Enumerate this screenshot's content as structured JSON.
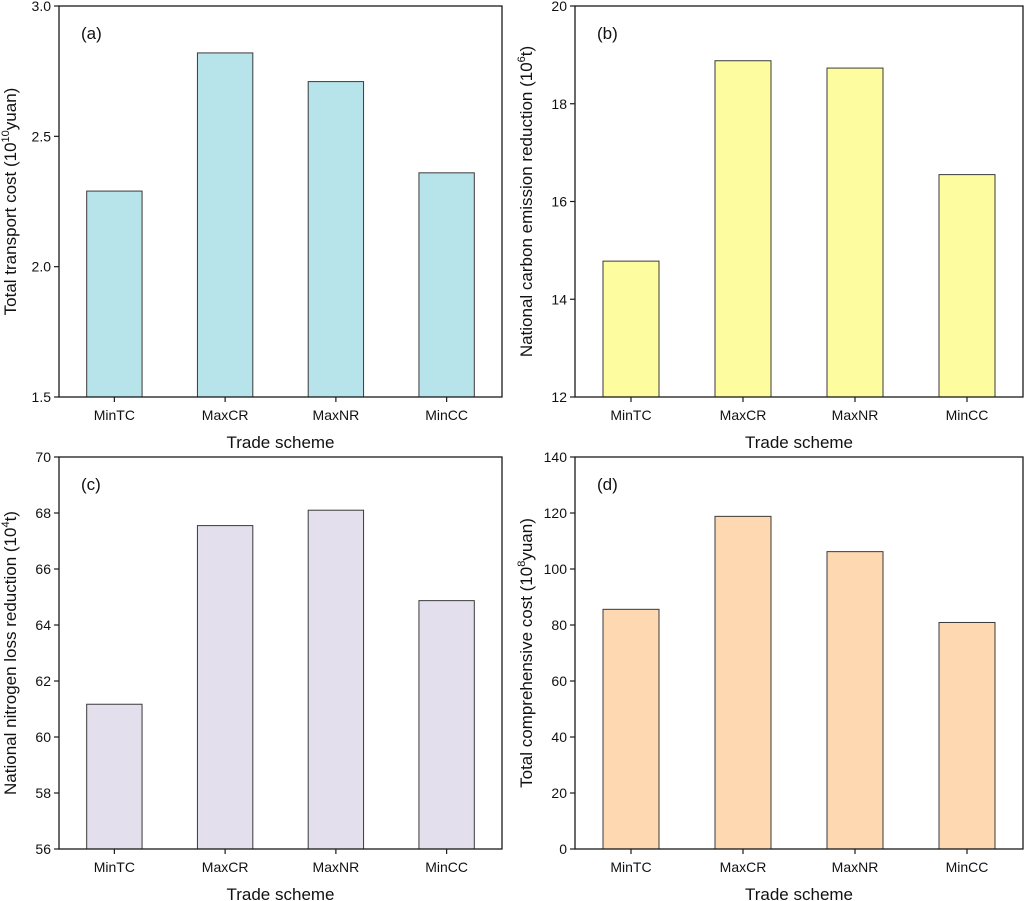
{
  "chart_data": [
    {
      "type": "bar",
      "panel_tag": "(a)",
      "title": "",
      "categories": [
        "MinTC",
        "MaxCR",
        "MaxNR",
        "MinCC"
      ],
      "values": [
        2.29,
        2.82,
        2.71,
        2.36
      ],
      "xlabel": "Trade scheme",
      "ylabel_parts": {
        "pre": "Total transport cost (10",
        "sup": "10",
        "post": "yuan)"
      },
      "ylim": [
        1.5,
        3.0
      ],
      "yticks": [
        "1.5",
        "2.0",
        "2.5",
        "3.0"
      ],
      "ytick_values": [
        1.5,
        2.0,
        2.5,
        3.0
      ],
      "bar_color": "#b7e3ea",
      "grid": false
    },
    {
      "type": "bar",
      "panel_tag": "(b)",
      "title": "",
      "categories": [
        "MinTC",
        "MaxCR",
        "MaxNR",
        "MinCC"
      ],
      "values": [
        14.78,
        18.88,
        18.73,
        16.55
      ],
      "xlabel": "Trade scheme",
      "ylabel_parts": {
        "pre": "National carbon emission reduction (10",
        "sup": "6",
        "post": "t)"
      },
      "ylim": [
        12,
        20
      ],
      "yticks": [
        "12",
        "14",
        "16",
        "18",
        "20"
      ],
      "ytick_values": [
        12,
        14,
        16,
        18,
        20
      ],
      "bar_color": "#fdfc9e",
      "grid": false
    },
    {
      "type": "bar",
      "panel_tag": "(c)",
      "title": "",
      "categories": [
        "MinTC",
        "MaxCR",
        "MaxNR",
        "MinCC"
      ],
      "values": [
        61.17,
        67.55,
        68.1,
        64.87
      ],
      "xlabel": "Trade scheme",
      "ylabel_parts": {
        "pre": "National nitrogen loss reduction (10",
        "sup": "4",
        "post": "t)"
      },
      "ylim": [
        56,
        70
      ],
      "yticks": [
        "56",
        "58",
        "60",
        "62",
        "64",
        "66",
        "68",
        "70"
      ],
      "ytick_values": [
        56,
        58,
        60,
        62,
        64,
        66,
        68,
        70
      ],
      "bar_color": "#e3dfec",
      "grid": false
    },
    {
      "type": "bar",
      "panel_tag": "(d)",
      "title": "",
      "categories": [
        "MinTC",
        "MaxCR",
        "MaxNR",
        "MinCC"
      ],
      "values": [
        85.6,
        118.8,
        106.2,
        80.9
      ],
      "xlabel": "Trade scheme",
      "ylabel_parts": {
        "pre": "Total comprehensive cost (10",
        "sup": "8",
        "post": "yuan)"
      },
      "ylim": [
        0,
        140
      ],
      "yticks": [
        "0",
        "20",
        "40",
        "60",
        "80",
        "100",
        "120",
        "140"
      ],
      "ytick_values": [
        0,
        20,
        40,
        60,
        80,
        100,
        120,
        140
      ],
      "bar_color": "#fdd8b0",
      "grid": false
    }
  ]
}
